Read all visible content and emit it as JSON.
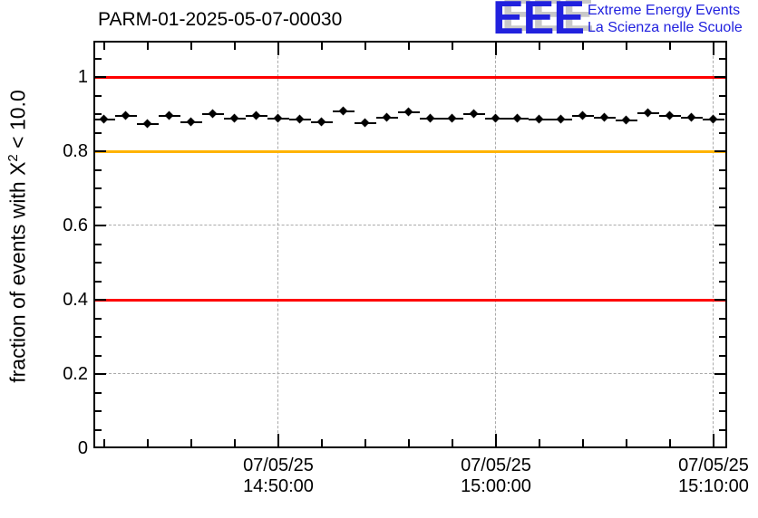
{
  "header": {
    "title": "PARM-01-2025-05-07-00030"
  },
  "logo": {
    "acronym": "EEE",
    "line1": "Extreme Energy Events",
    "line2": "La Scienza nelle Scuole",
    "color": "#2121de",
    "shadow_color": "#c9c9c9"
  },
  "chart_data": {
    "type": "scatter",
    "title": "PARM-01-2025-05-07-00030",
    "ylabel_parts": {
      "prefix": "fraction of events with X",
      "sup": "2",
      "suffix": " < 10.0"
    },
    "ylim": [
      0,
      1.1
    ],
    "grid": true,
    "y_ticks": {
      "major_values": [
        0,
        0.2,
        0.4,
        0.6,
        0.8,
        1.0
      ],
      "labels": [
        "0",
        "0.2",
        "0.4",
        "0.6",
        "0.8",
        "1"
      ],
      "minor_values": [
        0.05,
        0.1,
        0.15,
        0.25,
        0.3,
        0.35,
        0.45,
        0.5,
        0.55,
        0.65,
        0.7,
        0.75,
        0.85,
        0.9,
        0.95,
        1.05
      ]
    },
    "x_ticks": {
      "major": [
        {
          "offset_min": 8,
          "label_date": "07/05/25",
          "label_time": "14:50:00"
        },
        {
          "offset_min": 18,
          "label_date": "07/05/25",
          "label_time": "15:00:00"
        },
        {
          "offset_min": 28,
          "label_date": "07/05/25",
          "label_time": "15:10:00"
        }
      ],
      "minor_offsets_min": [
        0,
        2,
        4,
        6,
        10,
        12,
        14,
        16,
        20,
        22,
        24,
        26
      ]
    },
    "reference_lines": [
      {
        "y": 1.0,
        "color": "#ff0000"
      },
      {
        "y": 0.8,
        "color": "#ffb300"
      },
      {
        "y": 0.4,
        "color": "#ff0000"
      }
    ],
    "series": [
      {
        "name": "fraction-of-events-vs-time",
        "marker": "diamond",
        "color": "#000000",
        "start_time": "14:42:00",
        "step_min": 1,
        "x_error_min": 0.5,
        "values": [
          0.885,
          0.895,
          0.874,
          0.896,
          0.878,
          0.901,
          0.888,
          0.895,
          0.889,
          0.885,
          0.878,
          0.908,
          0.876,
          0.89,
          0.906,
          0.889,
          0.888,
          0.899,
          0.889,
          0.887,
          0.885,
          0.886,
          0.895,
          0.89,
          0.883,
          0.902,
          0.894,
          0.89,
          0.885
        ]
      }
    ]
  }
}
